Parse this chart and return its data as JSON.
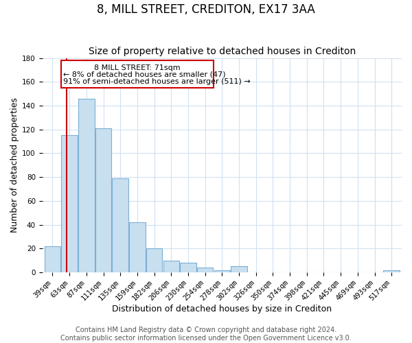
{
  "title": "8, MILL STREET, CREDITON, EX17 3AA",
  "subtitle": "Size of property relative to detached houses in Crediton",
  "xlabel": "Distribution of detached houses by size in Crediton",
  "ylabel": "Number of detached properties",
  "bar_labels": [
    "39sqm",
    "63sqm",
    "87sqm",
    "111sqm",
    "135sqm",
    "159sqm",
    "182sqm",
    "206sqm",
    "230sqm",
    "254sqm",
    "278sqm",
    "302sqm",
    "326sqm",
    "350sqm",
    "374sqm",
    "398sqm",
    "421sqm",
    "445sqm",
    "469sqm",
    "493sqm",
    "517sqm"
  ],
  "bar_values": [
    22,
    115,
    146,
    121,
    79,
    42,
    20,
    10,
    8,
    4,
    2,
    5,
    0,
    0,
    0,
    0,
    0,
    0,
    0,
    0,
    2
  ],
  "bar_color": "#c8dff0",
  "bar_edge_color": "#7bafd4",
  "ref_line_label": "8 MILL STREET: 71sqm",
  "annotation_line1": "← 8% of detached houses are smaller (47)",
  "annotation_line2": "91% of semi-detached houses are larger (511) →",
  "annotation_box_color": "#ffffff",
  "annotation_box_edge_color": "#cc0000",
  "reference_line_color": "#cc0000",
  "ylim": [
    0,
    180
  ],
  "yticks": [
    0,
    20,
    40,
    60,
    80,
    100,
    120,
    140,
    160,
    180
  ],
  "footer1": "Contains HM Land Registry data © Crown copyright and database right 2024.",
  "footer2": "Contains public sector information licensed under the Open Government Licence v3.0.",
  "background_color": "#ffffff",
  "grid_color": "#d0e0f0",
  "title_fontsize": 12,
  "subtitle_fontsize": 10,
  "axis_label_fontsize": 9,
  "tick_fontsize": 7.5,
  "annotation_fontsize": 8,
  "footer_fontsize": 7
}
